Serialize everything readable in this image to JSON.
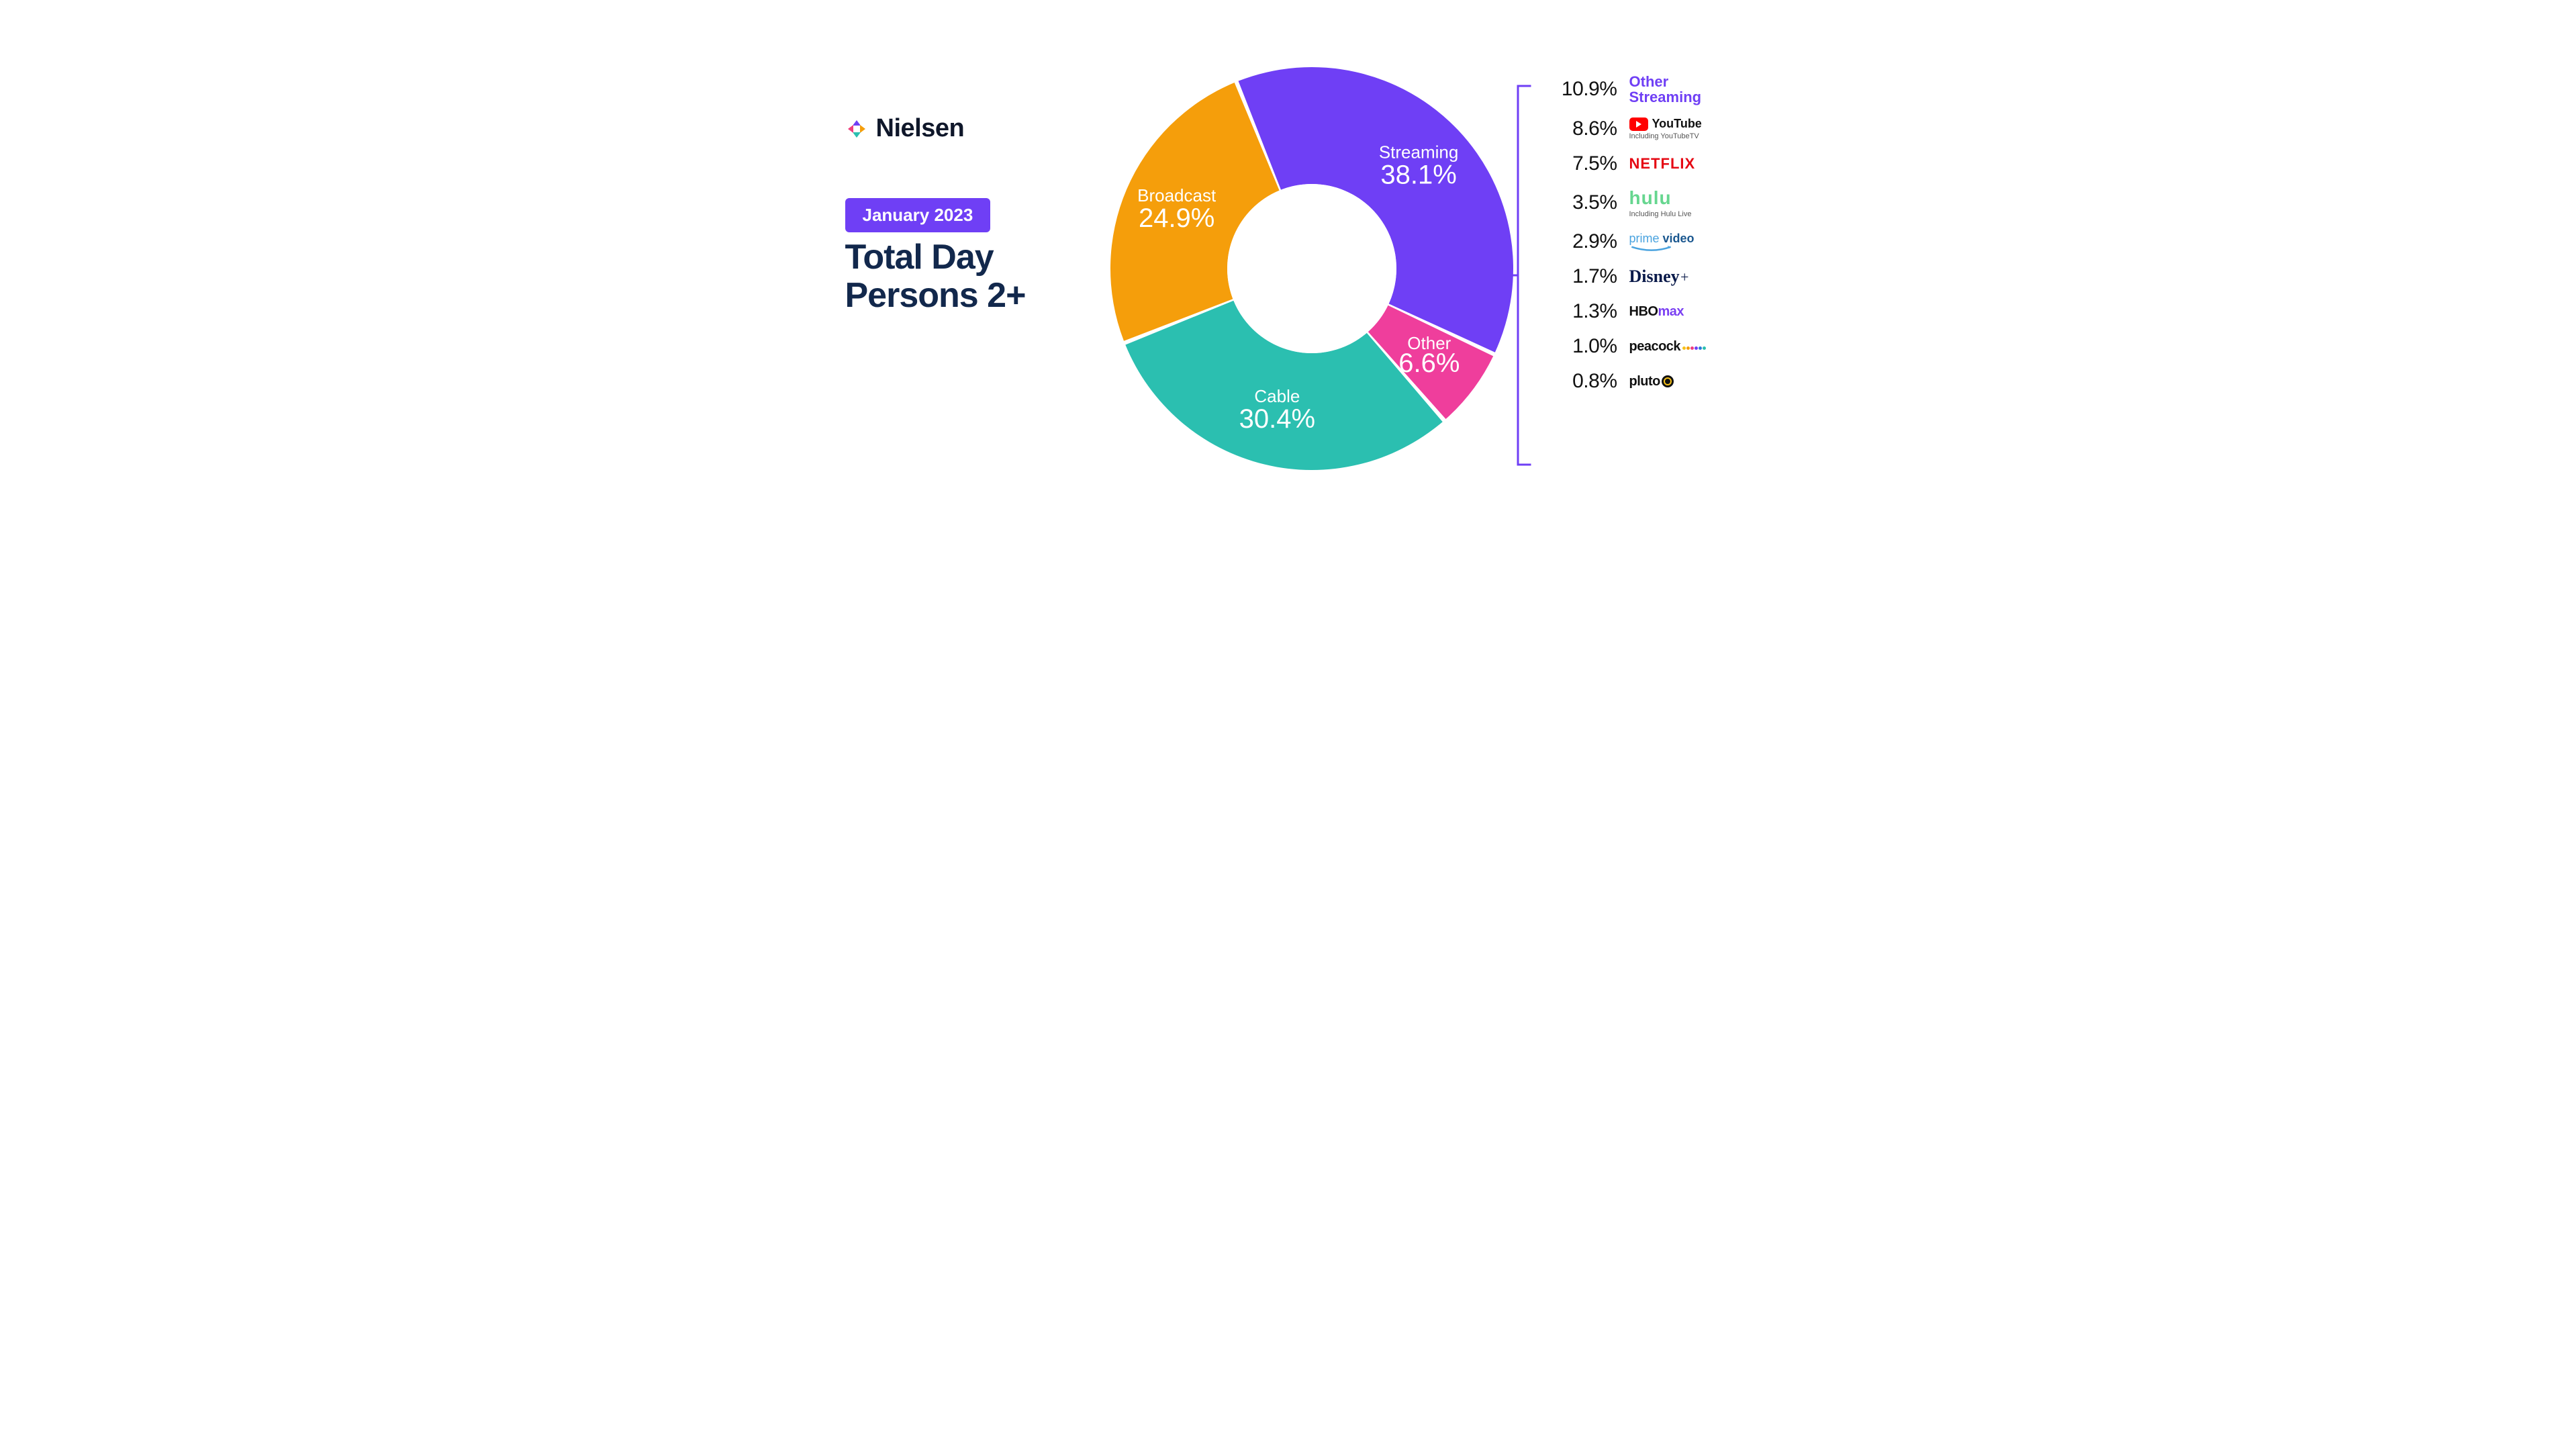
{
  "brand": {
    "name": "Nielsen",
    "mark_colors": [
      "#6f3ff5",
      "#f59e0b",
      "#2bbfb0",
      "#ef3e7c"
    ]
  },
  "badge": {
    "text": "January 2023",
    "bg": "#6f3ff5",
    "fg": "#ffffff"
  },
  "title_line1": "Total Day",
  "title_line2": "Persons 2+",
  "title_color": "#12284c",
  "donut": {
    "type": "donut",
    "inner_radius_ratio": 0.42,
    "start_angle_deg": -22,
    "background": "#ffffff",
    "gap_deg": 1.2,
    "slices": [
      {
        "name": "Streaming",
        "value": 38.1,
        "pct_label": "38.1%",
        "color": "#6f3ff5",
        "label_r": 0.73,
        "name_dy": -14,
        "pct_dy": 24
      },
      {
        "name": "Other",
        "value": 6.6,
        "pct_label": "6.6%",
        "color": "#ef3e9c",
        "label_r": 0.73,
        "name_dy": -12,
        "pct_dy": 20
      },
      {
        "name": "Cable",
        "value": 30.4,
        "pct_label": "30.4%",
        "color": "#2bbfb0",
        "label_r": 0.73,
        "name_dy": -14,
        "pct_dy": 24
      },
      {
        "name": "Broadcast",
        "value": 24.9,
        "pct_label": "24.9%",
        "color": "#f59e0b",
        "label_r": 0.73,
        "name_dy": -14,
        "pct_dy": 24
      }
    ]
  },
  "bracket_color": "#6f3ff5",
  "breakdown": [
    {
      "pct": "10.9%",
      "service": "other",
      "label": "Other Streaming"
    },
    {
      "pct": "8.6%",
      "service": "youtube",
      "label": "YouTube",
      "sub": "Including YouTubeTV"
    },
    {
      "pct": "7.5%",
      "service": "netflix",
      "label": "NETFLIX"
    },
    {
      "pct": "3.5%",
      "service": "hulu",
      "label": "hulu",
      "sub": "Including Hulu Live"
    },
    {
      "pct": "2.9%",
      "service": "prime",
      "label": "prime video"
    },
    {
      "pct": "1.7%",
      "service": "disney",
      "label": "Disney+"
    },
    {
      "pct": "1.3%",
      "service": "hbomax",
      "label": "HBOMAX"
    },
    {
      "pct": "1.0%",
      "service": "peacock",
      "label": "peacock"
    },
    {
      "pct": "0.8%",
      "service": "pluto",
      "label": "pluto tv"
    }
  ],
  "peacock_dots": [
    "#f7c21a",
    "#f59e0b",
    "#ef3e7c",
    "#6f3ff5",
    "#2b7bd9",
    "#2bbfb0"
  ]
}
